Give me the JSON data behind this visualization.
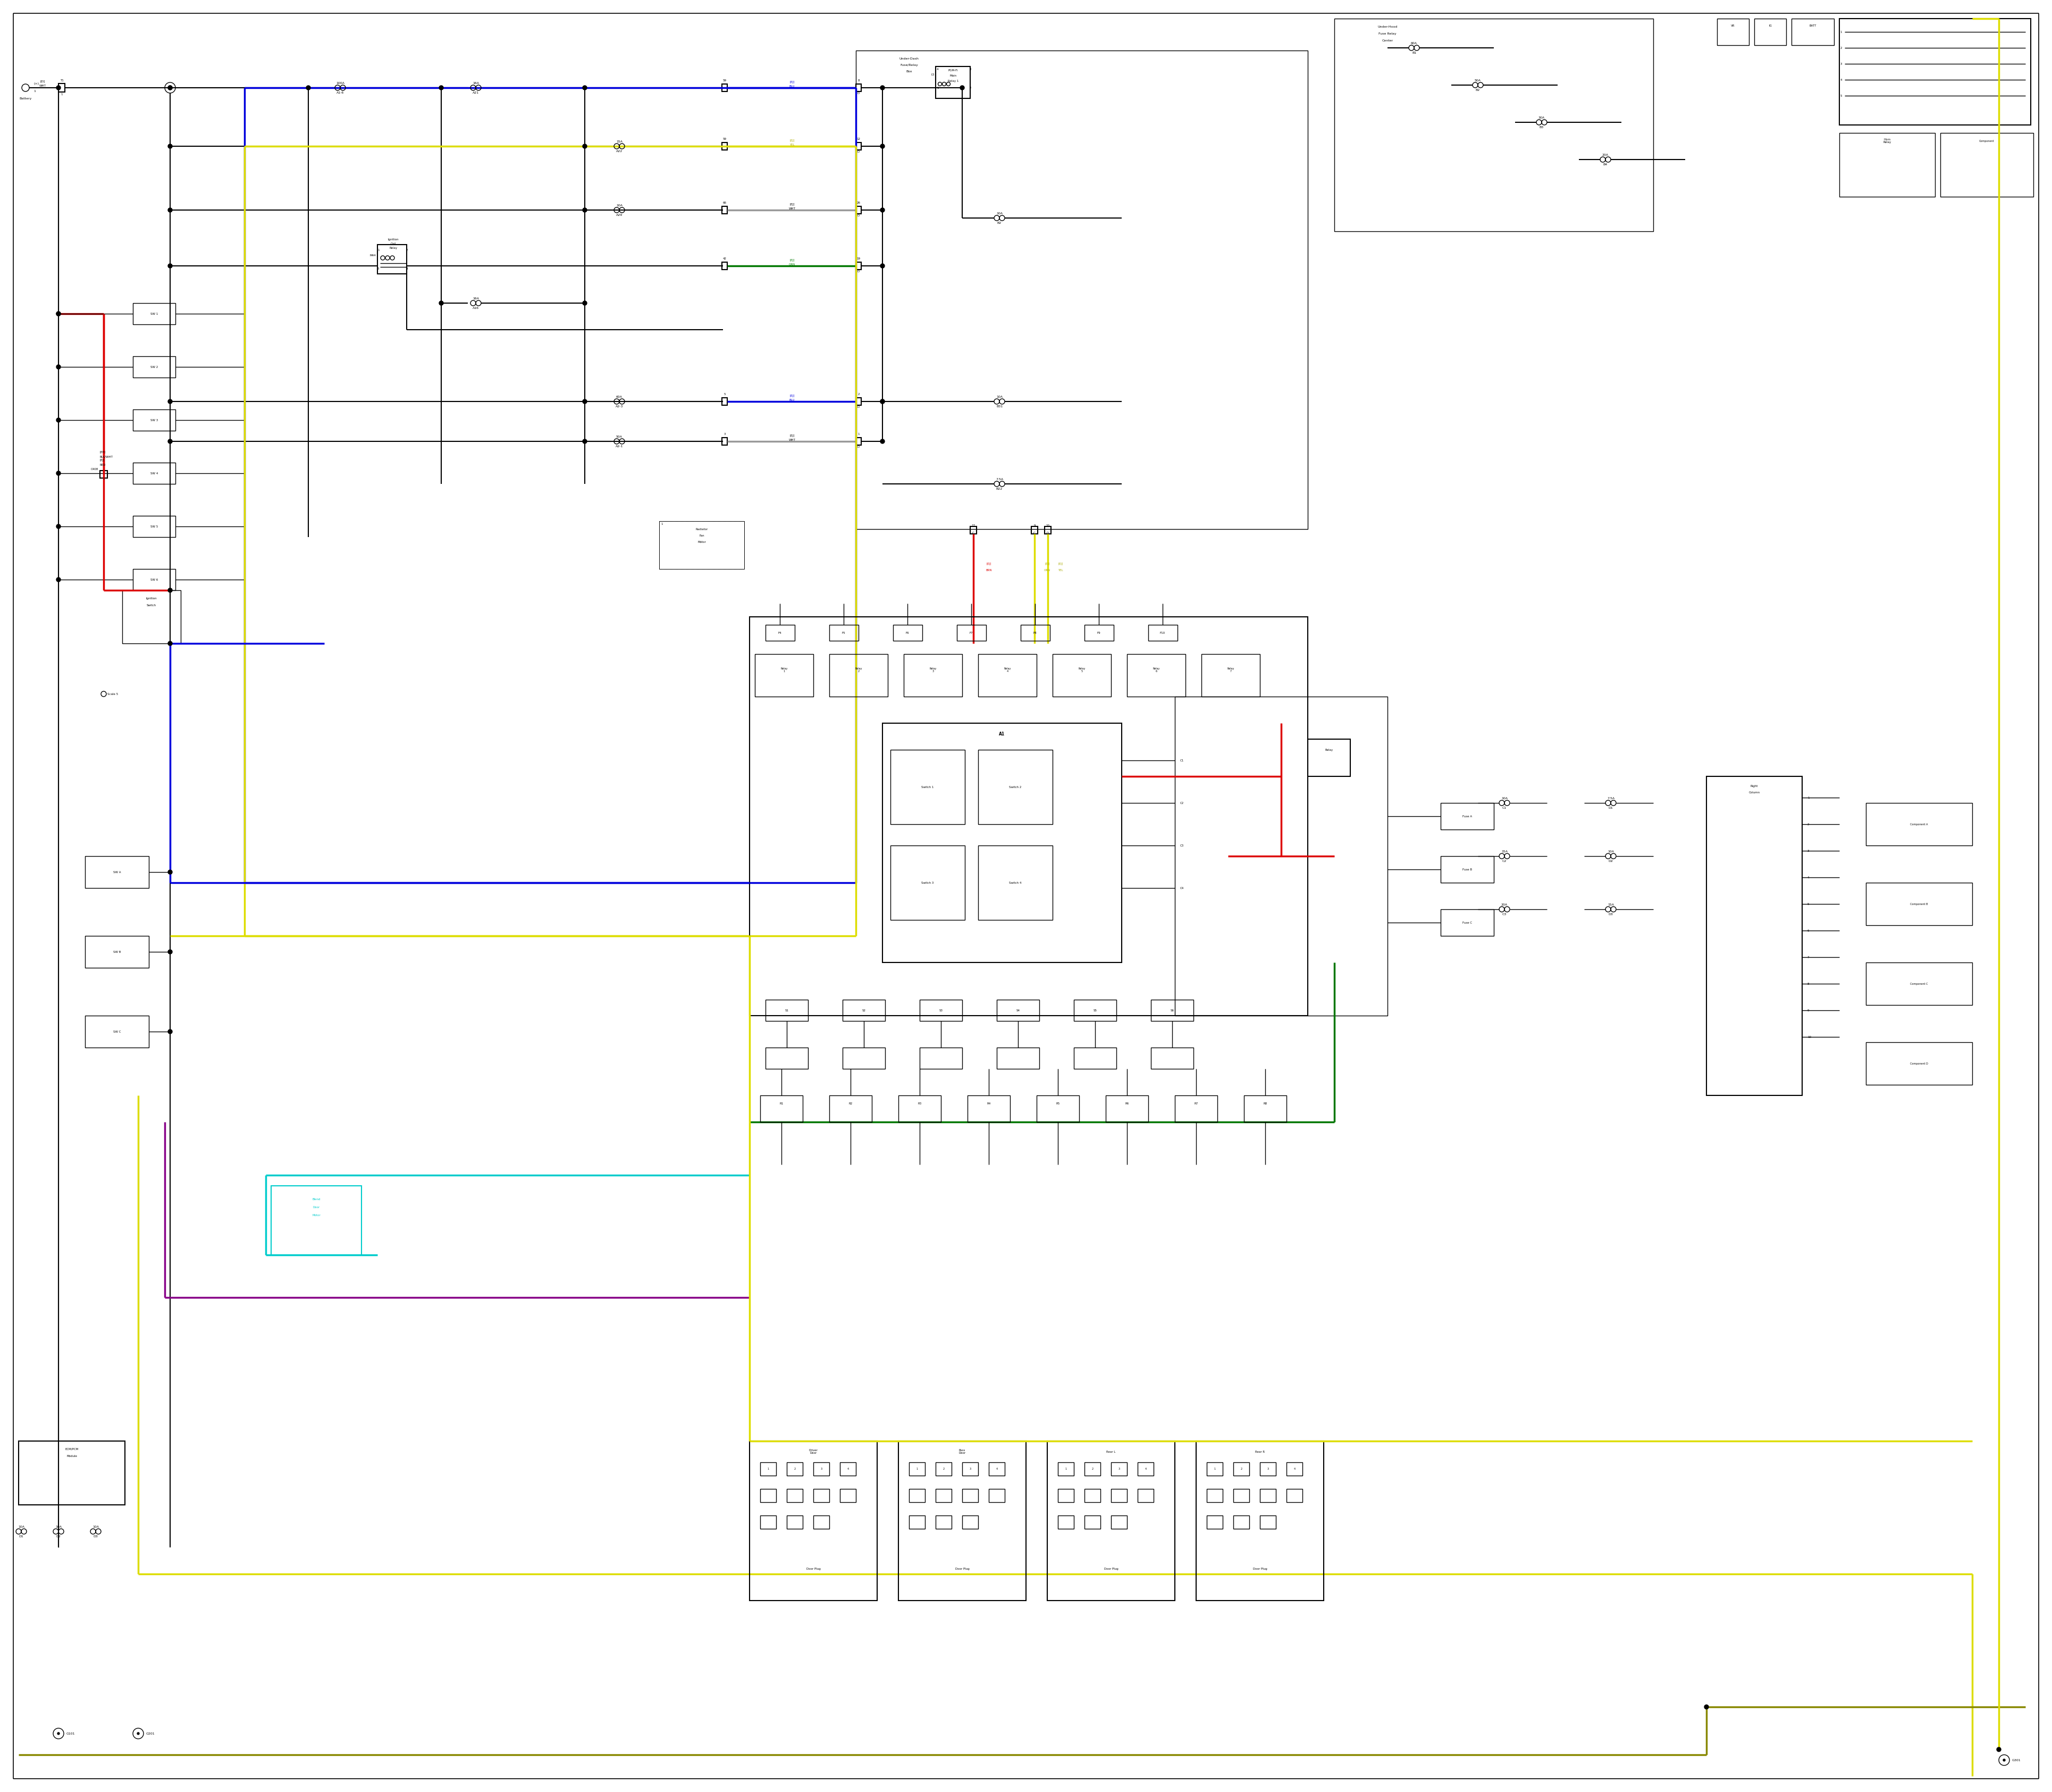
{
  "bg_color": "#ffffff",
  "black": "#000000",
  "red": "#dd0000",
  "blue": "#0000dd",
  "yellow": "#dddd00",
  "green": "#007700",
  "cyan": "#00cccc",
  "purple": "#880088",
  "gray": "#999999",
  "dark_yellow": "#888800",
  "fig_width": 38.4,
  "fig_height": 33.5,
  "lw": 1.0,
  "mlw": 1.5,
  "clw": 2.5,
  "fs": 5.5,
  "sfs": 4.5
}
